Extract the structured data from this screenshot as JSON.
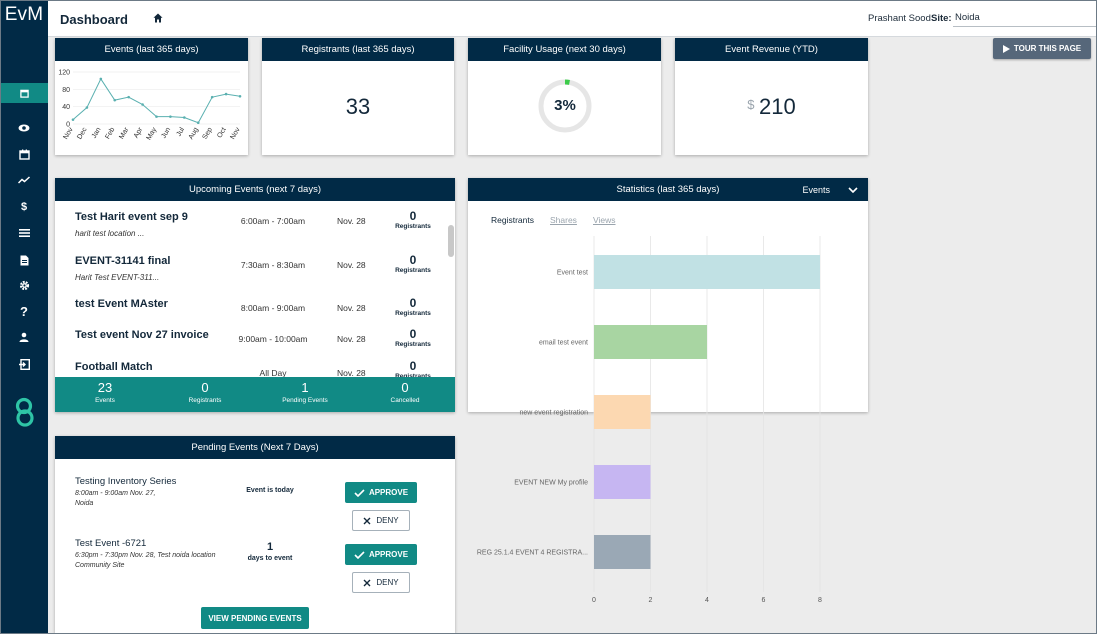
{
  "app": {
    "logo": "EvM"
  },
  "topbar": {
    "title": "Dashboard",
    "user": "Prashant Sood",
    "site_label": "Site:",
    "site_value": "Noida"
  },
  "tour_button": {
    "label": "TOUR THIS PAGE"
  },
  "cards": {
    "events": {
      "title": "Events (last 365 days)"
    },
    "registrants": {
      "title": "Registrants (last 365 days)",
      "value": "33"
    },
    "facility": {
      "title": "Facility Usage (next 30 days)",
      "value": "3%",
      "percent": 3
    },
    "revenue": {
      "title": "Event Revenue (YTD)",
      "currency": "$",
      "value": "210"
    }
  },
  "events_chart": {
    "chart_data": {
      "type": "line",
      "categories": [
        "Nov",
        "Dec",
        "Jan",
        "Feb",
        "Mar",
        "Apr",
        "May",
        "Jun",
        "Jul",
        "Aug",
        "Sep",
        "Oct",
        "Nov"
      ],
      "values": [
        10,
        38,
        104,
        55,
        62,
        45,
        17,
        17,
        15,
        3,
        62,
        69,
        64
      ],
      "ylim": [
        0,
        120
      ],
      "yticks": [
        "120",
        "80",
        "40",
        "0"
      ],
      "color": "#5ab0b0"
    }
  },
  "upcoming": {
    "title": "Upcoming Events (next 7 days)",
    "count_label": "Registrants",
    "events": [
      {
        "name": "Test Harit event sep 9",
        "location": "harit test location ...",
        "time": "6:00am - 7:00am",
        "date": "Nov. 28",
        "count": "0"
      },
      {
        "name": "EVENT-31141 final",
        "location": "Harit Test EVENT-311...",
        "time": "7:30am - 8:30am",
        "date": "Nov. 28",
        "count": "0"
      },
      {
        "name": "test Event MAster",
        "location": "",
        "time": "8:00am - 9:00am",
        "date": "Nov. 28",
        "count": "0"
      },
      {
        "name": "Test event Nov 27 invoice",
        "location": "",
        "time": "9:00am - 10:00am",
        "date": "Nov. 28",
        "count": "0"
      },
      {
        "name": "Football Match",
        "location": "",
        "time": "All Day",
        "date": "Nov. 28",
        "count": "0"
      }
    ],
    "footer": [
      {
        "value": "23",
        "label": "Events"
      },
      {
        "value": "0",
        "label": "Registrants"
      },
      {
        "value": "1",
        "label": "Pending Events"
      },
      {
        "value": "0",
        "label": "Cancelled"
      }
    ]
  },
  "statistics": {
    "title": "Statistics (last 365 days)",
    "dropdown": "Events",
    "tabs": [
      "Registrants",
      "Shares",
      "Views"
    ],
    "chart_data": {
      "type": "bar",
      "orientation": "horizontal",
      "categories": [
        "Event test",
        "email test event",
        "new event registration",
        "EVENT NEW My profile",
        "REG 25.1.4 EVENT 4 REGISTRA..."
      ],
      "values": [
        8,
        4,
        2,
        2,
        2
      ],
      "colors": [
        "#c1e1e4",
        "#a8d5a2",
        "#fcd8b1",
        "#c6b6f2",
        "#9aa8b5"
      ],
      "xlim": [
        0,
        8
      ],
      "xticks": [
        "0",
        "2",
        "4",
        "6",
        "8"
      ],
      "grid": true
    }
  },
  "pending": {
    "title": "Pending Events (Next 7 Days)",
    "approve_label": "APPROVE",
    "deny_label": "DENY",
    "items": [
      {
        "name": "Testing Inventory Series",
        "line1": "8:00am - 9:00am Nov. 27,",
        "line2": "Noida",
        "status": "Event is today",
        "status_number": ""
      },
      {
        "name": "Test Event -6721",
        "line1": "6:30pm - 7:30pm Nov. 28, Test noida location",
        "line2": "Community Site",
        "status": "days to event",
        "status_number": "1"
      }
    ],
    "view_button": "VIEW PENDING EVENTS"
  }
}
